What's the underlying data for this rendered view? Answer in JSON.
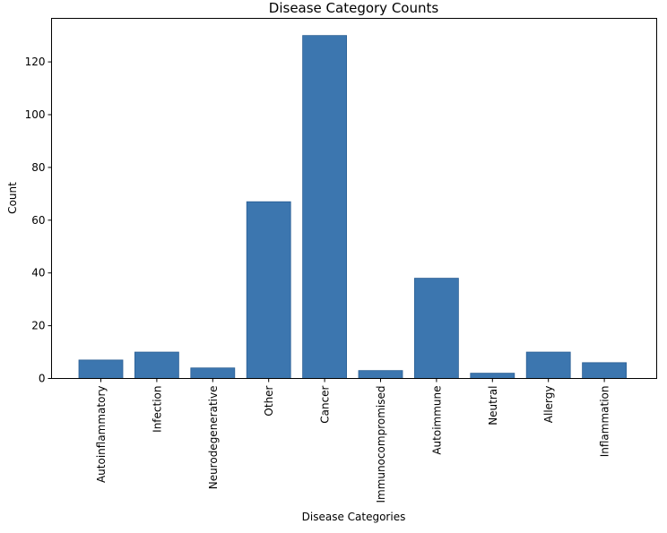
{
  "chart_data": {
    "type": "bar",
    "title": "Disease Category Counts",
    "xlabel": "Disease Categories",
    "ylabel": "Count",
    "categories": [
      "Autoinflammatory",
      "Infection",
      "Neurodegenerative",
      "Other",
      "Cancer",
      "Immunocompromised",
      "Autoimmune",
      "Neutral",
      "Allergy",
      "Inflammation"
    ],
    "values": [
      7,
      10,
      4,
      67,
      130,
      3,
      38,
      2,
      10,
      6
    ],
    "ylim": [
      0,
      136.5
    ],
    "yticks": [
      0,
      20,
      40,
      60,
      80,
      100,
      120
    ],
    "grid": false,
    "bar_color": "#3c76af",
    "bar_edge_color": "#2b5f94"
  }
}
